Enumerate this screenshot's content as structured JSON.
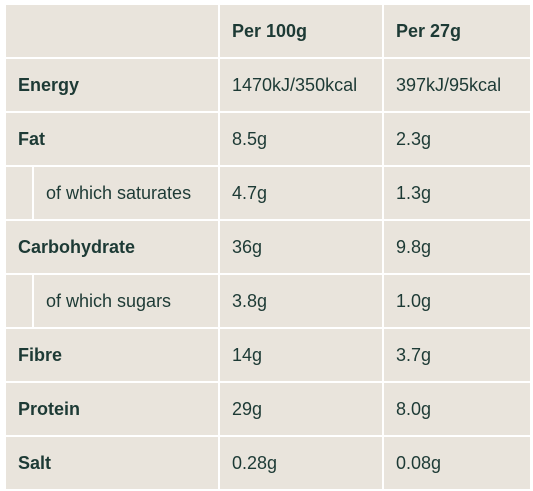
{
  "header": {
    "label_col": "",
    "per_100g": "Per 100g",
    "per_serving": "Per 27g"
  },
  "rows": [
    {
      "label": "Energy",
      "sub": false,
      "per_100g": "1470kJ/350kcal",
      "per_serving": "397kJ/95kcal"
    },
    {
      "label": "Fat",
      "sub": false,
      "per_100g": "8.5g",
      "per_serving": "2.3g"
    },
    {
      "label": "of which saturates",
      "sub": true,
      "per_100g": "4.7g",
      "per_serving": "1.3g"
    },
    {
      "label": "Carbohydrate",
      "sub": false,
      "per_100g": "36g",
      "per_serving": "9.8g"
    },
    {
      "label": "of which sugars",
      "sub": true,
      "per_100g": "3.8g",
      "per_serving": "1.0g"
    },
    {
      "label": "Fibre",
      "sub": false,
      "per_100g": "14g",
      "per_serving": "3.7g"
    },
    {
      "label": "Protein",
      "sub": false,
      "per_100g": "29g",
      "per_serving": "8.0g"
    },
    {
      "label": "Salt",
      "sub": false,
      "per_100g": "0.28g",
      "per_serving": "0.08g"
    }
  ],
  "colors": {
    "background": "#e9e4dc",
    "text": "#1d3a35",
    "grid": "#ffffff"
  }
}
